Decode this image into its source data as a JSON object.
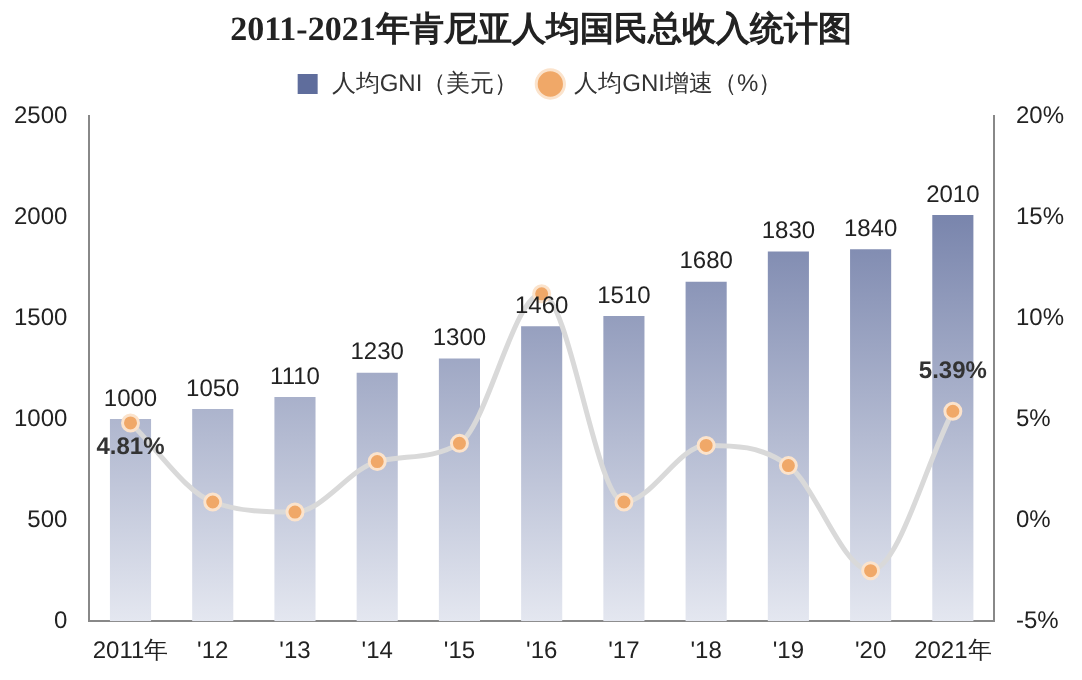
{
  "chart_data": {
    "type": "bar",
    "title": "2011-2021年肯尼亚人均国民总收入统计图",
    "categories": [
      "2011年",
      "'12",
      "'13",
      "'14",
      "'15",
      "'16",
      "'17",
      "'18",
      "'19",
      "'20",
      "2021年"
    ],
    "series": [
      {
        "name": "人均GNI（美元）",
        "color": "#5f6d9c",
        "values": [
          1000,
          1050,
          1110,
          1230,
          1300,
          1460,
          1510,
          1680,
          1830,
          1840,
          2010
        ],
        "data_labels": true
      },
      {
        "name": "人均GNI增速（%）",
        "type": "line",
        "axis": "y2",
        "color": "#d9d9d9",
        "marker": "circle",
        "values": [
          4.81,
          0.9,
          0.4,
          2.9,
          3.8,
          11.2,
          0.9,
          3.7,
          2.7,
          -2.5,
          5.39
        ],
        "value_labels": [
          "4.81%",
          null,
          null,
          null,
          null,
          null,
          null,
          null,
          null,
          null,
          "5.39%"
        ]
      }
    ],
    "ylim": [
      0,
      2500
    ],
    "yticks": [
      0,
      500,
      1000,
      1500,
      2000,
      2500
    ],
    "y2lim": [
      -5,
      20
    ],
    "y2ticks": [
      {
        "value": -5,
        "label": "-5%"
      },
      {
        "value": 0,
        "label": "0%"
      },
      {
        "value": 5,
        "label": "5%"
      },
      {
        "value": 10,
        "label": "10%"
      },
      {
        "value": 15,
        "label": "15%"
      },
      {
        "value": 20,
        "label": "20%"
      }
    ],
    "legend": "top",
    "grid": false
  }
}
